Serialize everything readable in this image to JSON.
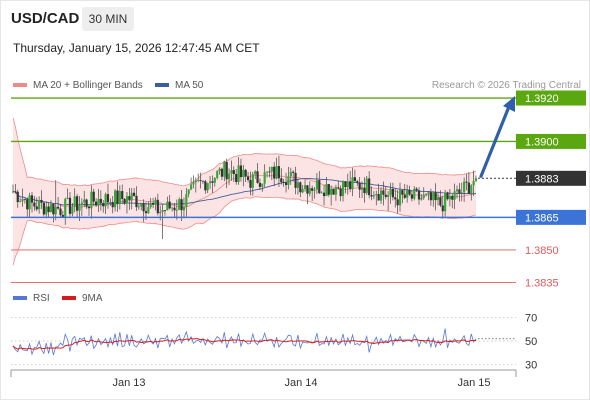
{
  "header": {
    "symbol": "USD/CAD",
    "timeframe": "30 MIN",
    "datetime": "Thursday, January 15, 2026 12:47:45 AM CET"
  },
  "legend": {
    "bollinger_label": "MA 20 + Bollinger Bands",
    "ma50_label": "MA 50",
    "credit": "Research © 2026 Trading Central",
    "rsi_label": "RSI",
    "rsi_ma_label": "9MA"
  },
  "colors": {
    "bollinger": "#f08a8a",
    "ma50": "#3a5fa0",
    "resistance": "#5aa70f",
    "pivot": "#3b73d6",
    "support": "#e25a5a",
    "current": "#333333",
    "arrow": "#2f5fa8",
    "rsi": "#5578d8",
    "rsi_ma": "#d81b1b"
  },
  "chart_data": [
    {
      "type": "candlestick",
      "y_range": [
        1.3826,
        1.3926
      ],
      "x_tick_labels": [
        "Jan 13",
        "Jan 14",
        "Jan 15"
      ],
      "current_price": {
        "value": 1.3883,
        "label": "1.3883"
      },
      "levels": [
        {
          "label": "1.3920",
          "value": 1.392,
          "kind": "resistance"
        },
        {
          "label": "1.3900",
          "value": 1.39,
          "kind": "resistance"
        },
        {
          "label": "1.3865",
          "value": 1.3865,
          "kind": "pivot"
        },
        {
          "label": "1.3850",
          "value": 1.385,
          "kind": "support"
        },
        {
          "label": "1.3835",
          "value": 1.3835,
          "kind": "support"
        }
      ],
      "forecast_arrow": {
        "from": 1.3883,
        "to": 1.392,
        "direction": "up"
      }
    },
    {
      "type": "line",
      "name": "RSI",
      "y_range": [
        20,
        80
      ],
      "y_ticks": [
        {
          "label": "70",
          "value": 70
        },
        {
          "label": "50",
          "value": 50
        },
        {
          "label": "30",
          "value": 30
        }
      ]
    }
  ]
}
